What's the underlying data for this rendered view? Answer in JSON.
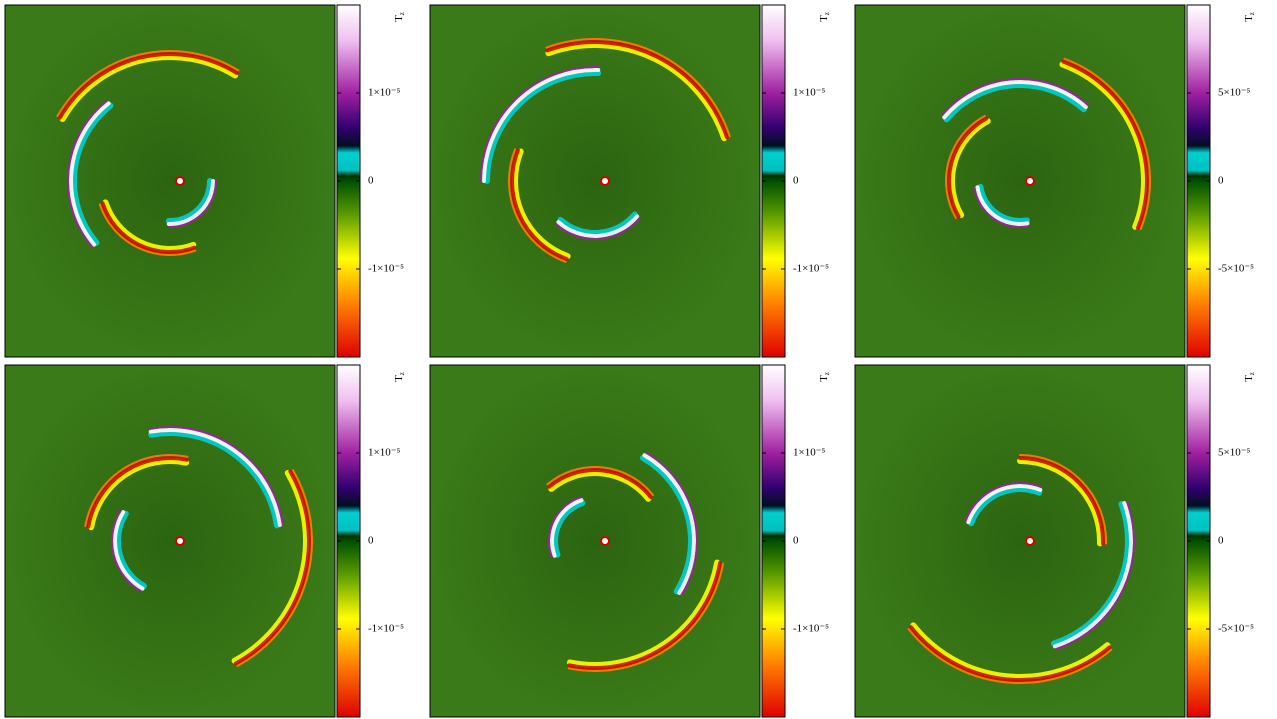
{
  "panels": [
    {
      "colorbar": {
        "label": "T",
        "label_subscript": "z",
        "range": [
          -2e-05,
          2e-05
        ],
        "ticks": [
          {
            "value": 1e-05,
            "label": "1×10⁻⁵"
          },
          0,
          {
            "value": -1e-05,
            "label": "-1×10⁻⁵"
          }
        ]
      }
    },
    {
      "colorbar": {
        "label": "T",
        "label_subscript": "z",
        "range": [
          -2e-05,
          2e-05
        ],
        "ticks": [
          {
            "value": 1e-05,
            "label": "1×10⁻⁵"
          },
          0,
          {
            "value": -1e-05,
            "label": "-1×10⁻⁵"
          }
        ]
      }
    },
    {
      "colorbar": {
        "label": "T",
        "label_subscript": "z",
        "range": [
          -0.0001,
          0.0001
        ],
        "ticks": [
          {
            "value": 5e-05,
            "label": "5×10⁻⁵"
          },
          0,
          {
            "value": -5e-05,
            "label": "-5×10⁻⁵"
          }
        ]
      }
    },
    {
      "colorbar": {
        "label": "T",
        "label_subscript": "z",
        "range": [
          -2e-05,
          2e-05
        ],
        "ticks": [
          {
            "value": 1e-05,
            "label": "1×10⁻⁵"
          },
          0,
          {
            "value": -1e-05,
            "label": "-1×10⁻⁵"
          }
        ]
      }
    },
    {
      "colorbar": {
        "label": "T",
        "label_subscript": "z",
        "range": [
          -2e-05,
          2e-05
        ],
        "ticks": [
          {
            "value": 1e-05,
            "label": "1×10⁻⁵"
          },
          0,
          {
            "value": -1e-05,
            "label": "-1×10⁻⁵"
          }
        ]
      }
    },
    {
      "colorbar": {
        "label": "T",
        "label_subscript": "z",
        "range": [
          -0.0001,
          0.0001
        ],
        "ticks": [
          {
            "value": 5e-05,
            "label": "5×10⁻⁵"
          },
          0,
          {
            "value": -5e-05,
            "label": "-5×10⁻⁵"
          }
        ]
      }
    }
  ]
}
